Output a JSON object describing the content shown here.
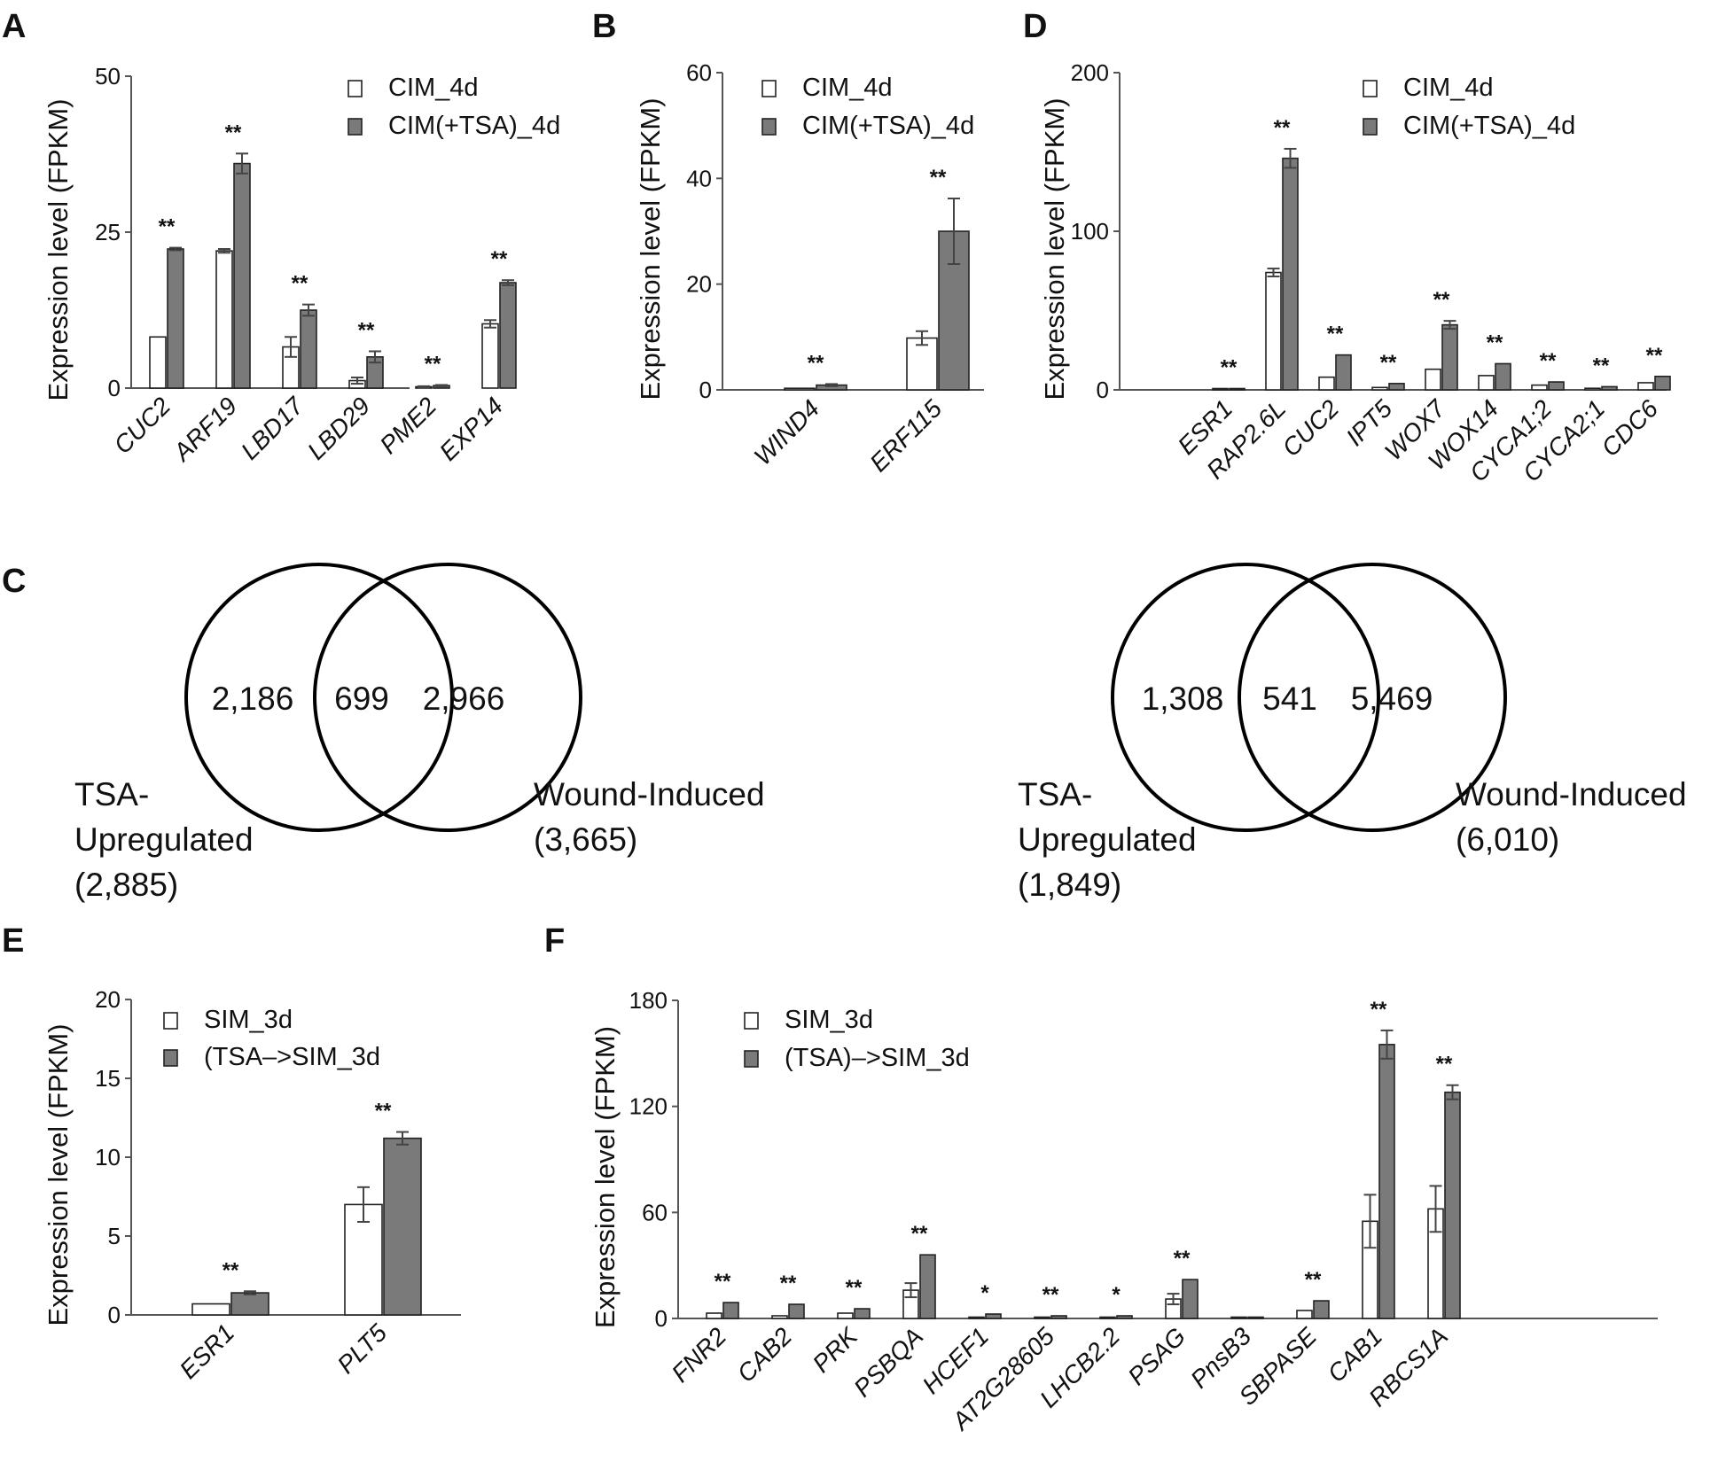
{
  "colors": {
    "white_bar": "#ffffff",
    "gray_bar": "#7a7a7a",
    "edge": "#222222"
  },
  "chart_data": [
    {
      "panel": "A",
      "type": "bar",
      "ylabel": "Expression level (FPKM)",
      "ylim": [
        0,
        50
      ],
      "yticks": [
        "0",
        "25",
        "50"
      ],
      "categories": [
        "CUC2",
        "ARF19",
        "LBD17",
        "LBD29",
        "PME2",
        "EXP14"
      ],
      "significance": [
        "**",
        "**",
        "**",
        "**",
        "**",
        "**"
      ],
      "series": [
        {
          "name": "CIM_4d",
          "values": [
            8.2,
            22,
            6.6,
            1.2,
            0.2,
            10.3
          ],
          "errors": [
            0,
            0.3,
            1.6,
            0.5,
            0.1,
            0.6
          ]
        },
        {
          "name": "CIM(+TSA)_4d",
          "values": [
            22.3,
            36,
            12.5,
            5,
            0.4,
            16.9
          ],
          "errors": [
            0.2,
            1.6,
            0.9,
            0.9,
            0.1,
            0.4
          ]
        }
      ]
    },
    {
      "panel": "B",
      "type": "bar",
      "ylabel": "Expression level (FPKM)",
      "ylim": [
        0,
        60
      ],
      "yticks": [
        "0",
        "20",
        "40",
        "60"
      ],
      "categories": [
        "WIND4",
        "ERF115"
      ],
      "significance": [
        "**",
        "**"
      ],
      "series": [
        {
          "name": "CIM_4d",
          "values": [
            0.3,
            9.8
          ],
          "errors": [
            0,
            1.3
          ]
        },
        {
          "name": "CIM(+TSA)_4d",
          "values": [
            0.9,
            30
          ],
          "errors": [
            0.2,
            6.2
          ]
        }
      ]
    },
    {
      "panel": "D",
      "type": "bar",
      "ylabel": "Expression level (FPKM)",
      "ylim": [
        0,
        200
      ],
      "yticks": [
        "0",
        "100",
        "200"
      ],
      "categories": [
        "ESR1",
        "RAP2.6L",
        "CUC2",
        "IPT5",
        "WOX7",
        "WOX14",
        "CYCA1;2",
        "CYCA2;1",
        "CDC6"
      ],
      "significance": [
        "**",
        "**",
        "**",
        "**",
        "**",
        "**",
        "**",
        "**",
        "**"
      ],
      "series": [
        {
          "name": "CIM_4d",
          "values": [
            0.5,
            74,
            8,
            1.5,
            13,
            9,
            3,
            1,
            4.5
          ],
          "errors": [
            0,
            2.5,
            0,
            0,
            0,
            0,
            0,
            0,
            0
          ]
        },
        {
          "name": "CIM(+TSA)_4d",
          "values": [
            0.8,
            146,
            22,
            4,
            41,
            16.5,
            5,
            2,
            8.5
          ],
          "errors": [
            0,
            6,
            0,
            0,
            2.5,
            0,
            0,
            0,
            0
          ]
        }
      ]
    },
    {
      "panel": "E",
      "type": "bar",
      "ylabel": "Expression level (FPKM)",
      "ylim": [
        0,
        20
      ],
      "yticks": [
        "0",
        "5",
        "10",
        "15",
        "20"
      ],
      "categories": [
        "ESR1",
        "PLT5"
      ],
      "significance": [
        "**",
        "**"
      ],
      "series": [
        {
          "name": "SIM_3d",
          "values": [
            0.7,
            7
          ],
          "errors": [
            0,
            1.1
          ]
        },
        {
          "name": "(TSA–>SIM_3d",
          "values": [
            1.4,
            11.2
          ],
          "errors": [
            0.1,
            0.4
          ]
        }
      ]
    },
    {
      "panel": "F",
      "type": "bar",
      "ylabel": "Expression level (FPKM)",
      "ylim": [
        0,
        180
      ],
      "yticks": [
        "0",
        "60",
        "120",
        "180"
      ],
      "categories": [
        "FNR2",
        "CAB2",
        "PRK",
        "PSBQA",
        "HCEF1",
        "AT2G28605",
        "LHCB2.2",
        "PSAG",
        "PnsB3",
        "SBPASE",
        "CAB1",
        "RBCS1A"
      ],
      "significance": [
        "**",
        "**",
        "**",
        "**",
        "*",
        "**",
        "*",
        "**",
        "",
        "**",
        "**",
        "**"
      ],
      "series": [
        {
          "name": "SIM_3d",
          "values": [
            3,
            1.5,
            3,
            16,
            0.5,
            0.5,
            0.5,
            11,
            0.2,
            4.5,
            55,
            62
          ],
          "errors": [
            0,
            0,
            0,
            4,
            0,
            0,
            0,
            3,
            0,
            0,
            15,
            13
          ]
        },
        {
          "name": "(TSA)–>SIM_3d",
          "values": [
            9,
            8,
            5.5,
            36,
            2.5,
            1.5,
            1.5,
            22,
            0.5,
            10,
            155,
            128
          ],
          "errors": [
            0,
            0,
            0,
            0,
            0,
            0,
            0,
            0,
            0,
            0,
            8,
            4
          ]
        }
      ]
    }
  ],
  "panel_c": {
    "label": "C",
    "venns": [
      {
        "left": "2,186",
        "overlap": "699",
        "right": "2,966",
        "left_caption": [
          "TSA-",
          "Upregulated",
          "(2,885)"
        ],
        "right_caption": [
          "Wound-Induced",
          "(3,665)"
        ]
      },
      {
        "left": "1,308",
        "overlap": "541",
        "right": "5,469",
        "left_caption": [
          "TSA-",
          "Upregulated",
          "(1,849)"
        ],
        "right_caption": [
          "Wound-Induced",
          "(6,010)"
        ]
      }
    ]
  }
}
